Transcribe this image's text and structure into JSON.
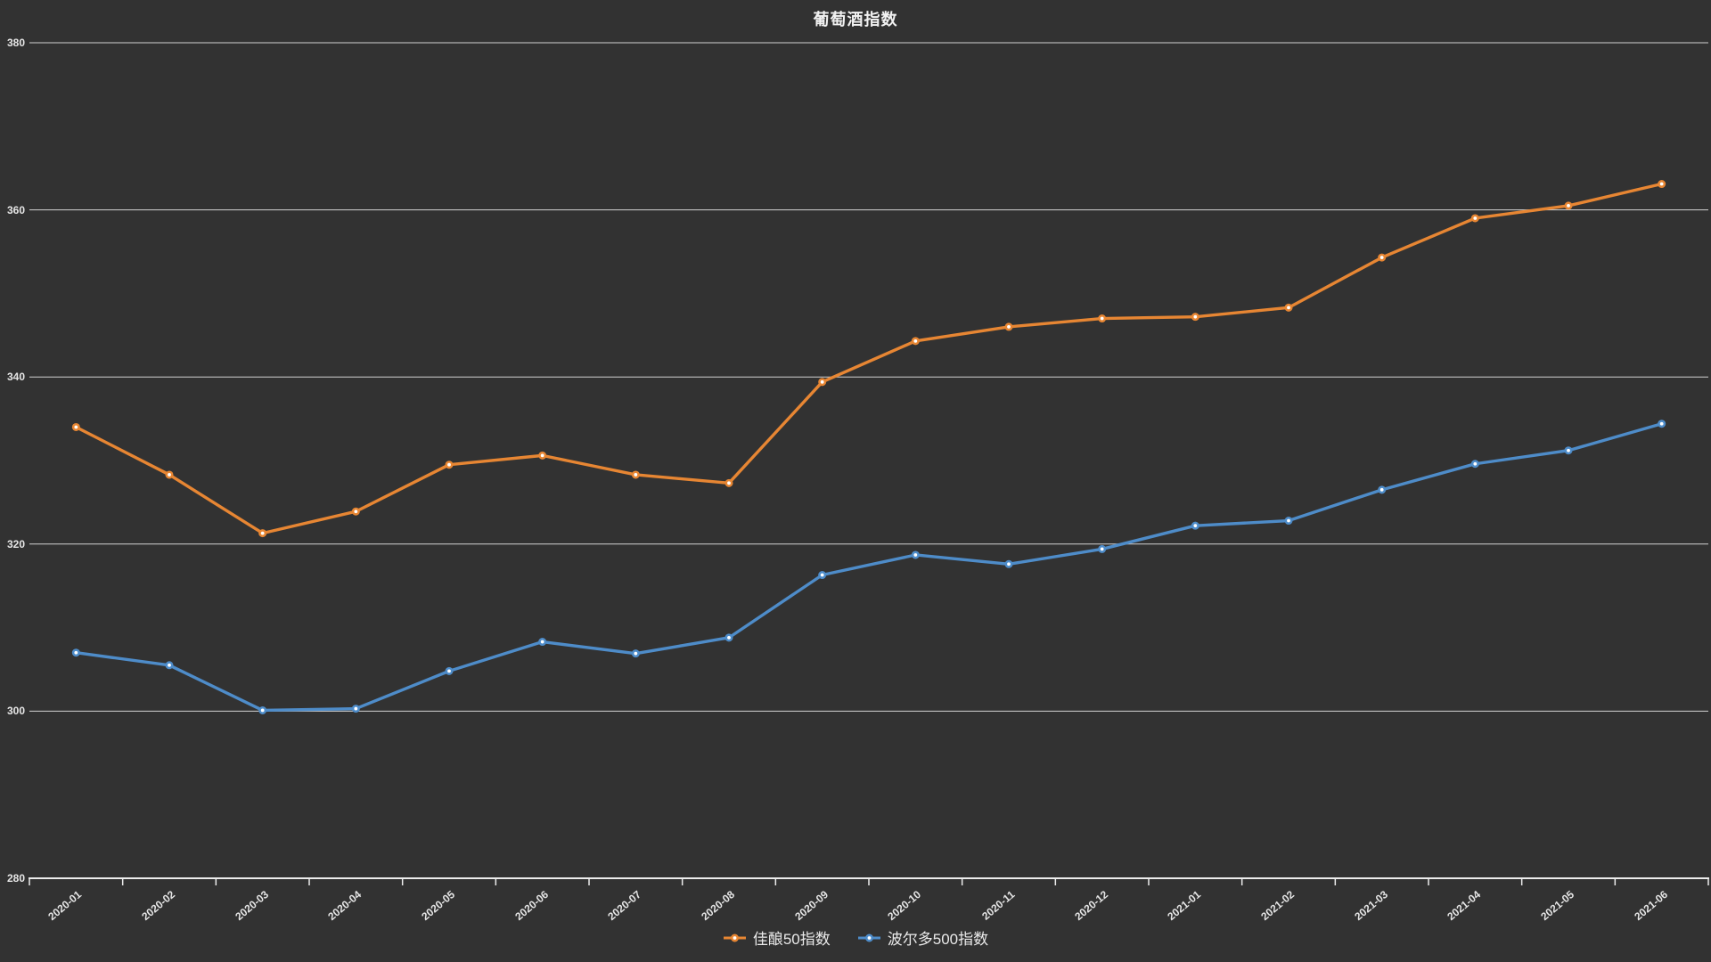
{
  "title": "葡萄酒指数",
  "colors": {
    "background": "#323232",
    "gridline": "#d2d2d2",
    "axis": "#ececec",
    "label_text": "#e6e6e6",
    "title_text": "#f2f2f2",
    "marker_fill": "#ffffff",
    "series_orange": "#e78633",
    "series_blue": "#4e8cc9"
  },
  "legend": {
    "items": [
      {
        "label": "佳酿50指数",
        "color": "#e78633"
      },
      {
        "label": "波尔多500指数",
        "color": "#4e8cc9"
      }
    ]
  },
  "chart_data": {
    "type": "line",
    "title": "葡萄酒指数",
    "xlabel": "",
    "ylabel": "",
    "ylim": [
      280,
      380
    ],
    "yticks": [
      280,
      300,
      320,
      340,
      360,
      380
    ],
    "grid": true,
    "legend_position": "bottom-center",
    "x_label_rotation_deg": 40,
    "categories": [
      "2020-01",
      "2020-02",
      "2020-03",
      "2020-04",
      "2020-05",
      "2020-06",
      "2020-07",
      "2020-08",
      "2020-09",
      "2020-10",
      "2020-11",
      "2020-12",
      "2021-01",
      "2021-02",
      "2021-03",
      "2021-04",
      "2021-05",
      "2021-06"
    ],
    "series": [
      {
        "name": "佳酿50指数",
        "color": "#e78633",
        "values": [
          334.0,
          328.3,
          321.3,
          323.9,
          329.5,
          330.6,
          328.3,
          327.3,
          339.4,
          344.3,
          346.0,
          347.0,
          347.2,
          348.3,
          354.3,
          359.0,
          360.5,
          363.1
        ]
      },
      {
        "name": "波尔多500指数",
        "color": "#4e8cc9",
        "values": [
          307.0,
          305.5,
          300.1,
          300.3,
          304.8,
          308.3,
          306.9,
          308.8,
          316.3,
          318.7,
          317.6,
          319.4,
          322.2,
          322.8,
          326.5,
          329.6,
          331.2,
          334.4
        ]
      }
    ]
  }
}
